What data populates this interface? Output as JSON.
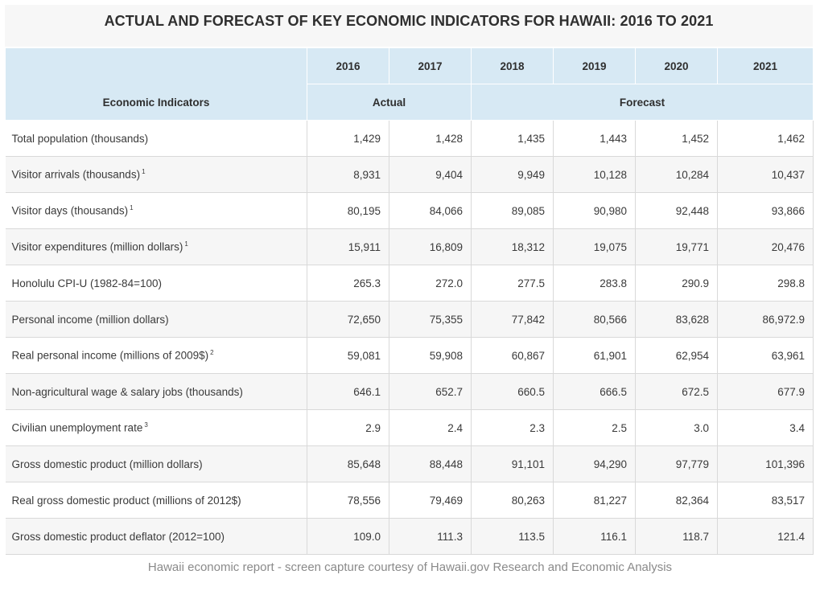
{
  "title": "ACTUAL AND FORECAST OF KEY ECONOMIC INDICATORS FOR HAWAII: 2016 TO 2021",
  "header": {
    "years": [
      "2016",
      "2017",
      "2018",
      "2019",
      "2020",
      "2021"
    ],
    "indicators_label": "Economic Indicators",
    "actual_label": "Actual",
    "forecast_label": "Forecast"
  },
  "rows": [
    {
      "label": "Total population (thousands)",
      "fn": "",
      "values": [
        "1,429",
        "1,428",
        "1,435",
        "1,443",
        "1,452",
        "1,462"
      ]
    },
    {
      "label": "Visitor arrivals (thousands)",
      "fn": "1",
      "values": [
        "8,931",
        "9,404",
        "9,949",
        "10,128",
        "10,284",
        "10,437"
      ]
    },
    {
      "label": "Visitor days (thousands)",
      "fn": "1",
      "values": [
        "80,195",
        "84,066",
        "89,085",
        "90,980",
        "92,448",
        "93,866"
      ]
    },
    {
      "label": "Visitor expenditures (million dollars)",
      "fn": "1",
      "values": [
        "15,911",
        "16,809",
        "18,312",
        "19,075",
        "19,771",
        "20,476"
      ]
    },
    {
      "label": "Honolulu CPI-U (1982-84=100)",
      "fn": "",
      "values": [
        "265.3",
        "272.0",
        "277.5",
        "283.8",
        "290.9",
        "298.8"
      ]
    },
    {
      "label": "Personal income (million dollars)",
      "fn": "",
      "values": [
        "72,650",
        "75,355",
        "77,842",
        "80,566",
        "83,628",
        "86,972.9"
      ]
    },
    {
      "label": "Real personal income (millions of 2009$)",
      "fn": "2",
      "values": [
        "59,081",
        "59,908",
        "60,867",
        "61,901",
        "62,954",
        "63,961"
      ]
    },
    {
      "label": "Non-agricultural wage & salary jobs (thousands)",
      "fn": "",
      "values": [
        "646.1",
        "652.7",
        "660.5",
        "666.5",
        "672.5",
        "677.9"
      ]
    },
    {
      "label": "Civilian unemployment rate",
      "fn": "3",
      "values": [
        "2.9",
        "2.4",
        "2.3",
        "2.5",
        "3.0",
        "3.4"
      ]
    },
    {
      "label": "Gross domestic product (million dollars)",
      "fn": "",
      "values": [
        "85,648",
        "88,448",
        "91,101",
        "94,290",
        "97,779",
        "101,396"
      ]
    },
    {
      "label": "Real gross domestic product (millions of 2012$)",
      "fn": "",
      "values": [
        "78,556",
        "79,469",
        "80,263",
        "81,227",
        "82,364",
        "83,517"
      ]
    },
    {
      "label": "Gross domestic product deflator (2012=100)",
      "fn": "",
      "values": [
        "109.0",
        "111.3",
        "113.5",
        "116.1",
        "118.7",
        "121.4"
      ]
    }
  ],
  "caption": "Hawaii economic report - screen capture courtesy of Hawaii.gov Research and Economic Analysis"
}
